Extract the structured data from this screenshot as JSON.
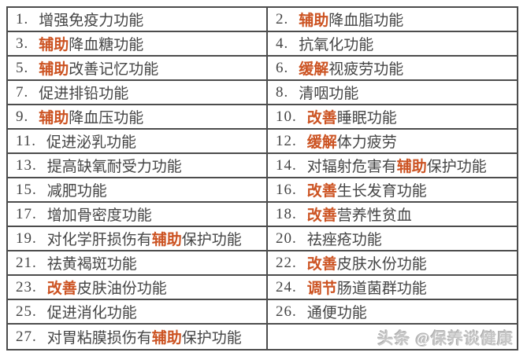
{
  "colors": {
    "text": "#454545",
    "highlight": "#cc5322",
    "border": "#4c4c4c",
    "watermark": "#c6c6c6",
    "background": "#ffffff"
  },
  "table": {
    "rows": 14,
    "columns": 2,
    "items": [
      {
        "n": "1.",
        "segments": [
          {
            "t": "增强免疫力功能",
            "h": false
          }
        ]
      },
      {
        "n": "2.",
        "segments": [
          {
            "t": "辅助",
            "h": true
          },
          {
            "t": "降血脂功能",
            "h": false
          }
        ]
      },
      {
        "n": "3.",
        "segments": [
          {
            "t": "辅助",
            "h": true
          },
          {
            "t": "降血糖功能",
            "h": false
          }
        ]
      },
      {
        "n": "4.",
        "segments": [
          {
            "t": "抗氧化功能",
            "h": false
          }
        ]
      },
      {
        "n": "5.",
        "segments": [
          {
            "t": "辅助",
            "h": true
          },
          {
            "t": "改善记忆功能",
            "h": false
          }
        ]
      },
      {
        "n": "6.",
        "segments": [
          {
            "t": "缓解",
            "h": true
          },
          {
            "t": "视疲劳功能",
            "h": false
          }
        ]
      },
      {
        "n": "7.",
        "segments": [
          {
            "t": "促进排铅功能",
            "h": false
          }
        ]
      },
      {
        "n": "8.",
        "segments": [
          {
            "t": "清咽功能",
            "h": false
          }
        ]
      },
      {
        "n": "9.",
        "segments": [
          {
            "t": "辅助",
            "h": true
          },
          {
            "t": "降血压功能",
            "h": false
          }
        ]
      },
      {
        "n": "10.",
        "segments": [
          {
            "t": "改善",
            "h": true
          },
          {
            "t": "睡眠功能",
            "h": false
          }
        ]
      },
      {
        "n": "11.",
        "segments": [
          {
            "t": "促进泌乳功能",
            "h": false
          }
        ]
      },
      {
        "n": "12.",
        "segments": [
          {
            "t": "缓解",
            "h": true
          },
          {
            "t": "体力疲劳",
            "h": false
          }
        ]
      },
      {
        "n": "13.",
        "segments": [
          {
            "t": "提高缺氧耐受力功能",
            "h": false
          }
        ]
      },
      {
        "n": "14.",
        "segments": [
          {
            "t": "对辐射危害有",
            "h": false
          },
          {
            "t": "辅助",
            "h": true
          },
          {
            "t": "保护功能",
            "h": false
          }
        ]
      },
      {
        "n": "15.",
        "segments": [
          {
            "t": "减肥功能",
            "h": false
          }
        ]
      },
      {
        "n": "16.",
        "segments": [
          {
            "t": "改善",
            "h": true
          },
          {
            "t": "生长发育功能",
            "h": false
          }
        ]
      },
      {
        "n": "17.",
        "segments": [
          {
            "t": "增加骨密度功能",
            "h": false
          }
        ]
      },
      {
        "n": "18.",
        "segments": [
          {
            "t": "改善",
            "h": true
          },
          {
            "t": "营养性贫血",
            "h": false
          }
        ]
      },
      {
        "n": "19.",
        "segments": [
          {
            "t": "对化学肝损伤有",
            "h": false
          },
          {
            "t": "辅助",
            "h": true
          },
          {
            "t": "保护功能",
            "h": false
          }
        ]
      },
      {
        "n": "20.",
        "segments": [
          {
            "t": "祛痤疮功能",
            "h": false
          }
        ]
      },
      {
        "n": "21.",
        "segments": [
          {
            "t": "祛黄褐斑功能",
            "h": false
          }
        ]
      },
      {
        "n": "22.",
        "segments": [
          {
            "t": "改善",
            "h": true
          },
          {
            "t": "皮肤水份功能",
            "h": false
          }
        ]
      },
      {
        "n": "23.",
        "segments": [
          {
            "t": "改善",
            "h": true
          },
          {
            "t": "皮肤油份功能",
            "h": false
          }
        ]
      },
      {
        "n": "24.",
        "segments": [
          {
            "t": "调节",
            "h": true
          },
          {
            "t": "肠道菌群功能",
            "h": false
          }
        ]
      },
      {
        "n": "25.",
        "segments": [
          {
            "t": "促进消化功能",
            "h": false
          }
        ]
      },
      {
        "n": "26.",
        "segments": [
          {
            "t": "通便功能",
            "h": false
          }
        ]
      },
      {
        "n": "27.",
        "segments": [
          {
            "t": "对胃粘膜损伤有",
            "h": false
          },
          {
            "t": "辅助",
            "h": true
          },
          {
            "t": "保护功能",
            "h": false
          }
        ]
      }
    ]
  },
  "watermark": {
    "text": "头条 @保养谈健康"
  }
}
